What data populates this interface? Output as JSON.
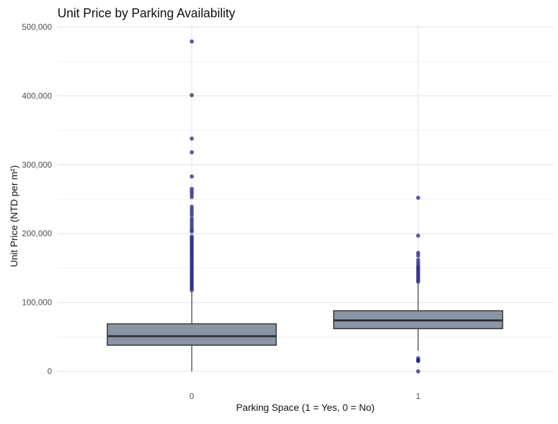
{
  "chart_data": {
    "type": "boxplot",
    "title": "Unit Price by Parking Availability",
    "xlabel": "Parking Space (1 = Yes, 0 = No)",
    "ylabel": "Unit Price (NTD per m²)",
    "ylim": [
      0,
      500000
    ],
    "y_ticks": [
      0,
      100000,
      200000,
      300000,
      400000,
      500000
    ],
    "y_tick_labels": [
      "0",
      "100,000",
      "200,000",
      "300,000",
      "400,000",
      "500,000"
    ],
    "categories": [
      "0",
      "1"
    ],
    "box_fill": "#8a96a6",
    "box_stroke": "#333333",
    "outlier_color": "#1a1a80",
    "boxes": [
      {
        "category": "0",
        "whisker_low": 0,
        "q1": 38000,
        "median": 51000,
        "q3": 69000,
        "whisker_high": 116000,
        "outliers": [
          479000,
          401000,
          338000,
          318000,
          283000,
          265000,
          261000,
          257000,
          253000,
          239000,
          235000,
          231000,
          227000,
          222000,
          218000,
          214000,
          210000,
          206000,
          203000,
          196000,
          193000,
          190000,
          187000,
          184000,
          181000,
          178000,
          175000,
          172000,
          169000,
          166000,
          163000,
          160000,
          157000,
          154000,
          151000,
          148000,
          145000,
          142000,
          139000,
          136000,
          133000,
          130000,
          127000,
          124000,
          121000,
          118000
        ]
      },
      {
        "category": "1",
        "whisker_low": 30000,
        "q1": 62000,
        "median": 74000,
        "q3": 88000,
        "whisker_high": 128000,
        "outliers": [
          252000,
          197000,
          172000,
          168000,
          162000,
          158000,
          154000,
          151000,
          148000,
          145000,
          142000,
          139000,
          136000,
          133000,
          130000,
          19000,
          16000,
          15000,
          0
        ]
      }
    ]
  }
}
